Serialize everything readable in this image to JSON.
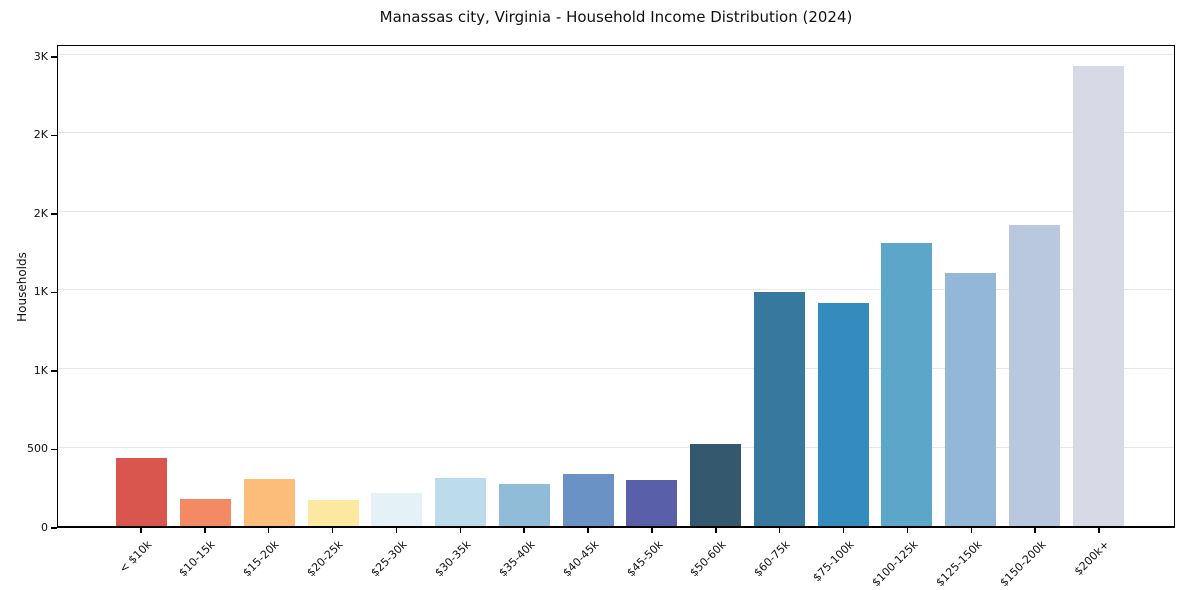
{
  "chart_data": {
    "type": "bar",
    "title": "Manassas city, Virginia - Household Income Distribution (2024)",
    "xlabel": "",
    "ylabel": "Households",
    "categories": [
      "< $10k",
      "$10-15k",
      "$15-20k",
      "$20-25k",
      "$25-30k",
      "$30-35k",
      "$35-40k",
      "$40-45k",
      "$45-50k",
      "$50-60k",
      "$60-75k",
      "$75-100k",
      "$100-125k",
      "$125-150k",
      "$150-200k",
      "$200k+"
    ],
    "values": [
      430,
      175,
      300,
      165,
      210,
      305,
      270,
      330,
      295,
      525,
      1490,
      1420,
      1800,
      1610,
      1920,
      2930
    ],
    "bar_colors": [
      "#d8564e",
      "#f38a63",
      "#fcbd7a",
      "#fde8a2",
      "#e4f1f7",
      "#bcdcec",
      "#90bcd8",
      "#6b92c4",
      "#5a5fa9",
      "#34596f",
      "#36789e",
      "#348bbd",
      "#5ba6c9",
      "#93b8d7",
      "#b9c8de",
      "#d8d9e6"
    ],
    "ylim": [
      0,
      3076
    ],
    "yticks": [
      {
        "value": 0,
        "label": "0"
      },
      {
        "value": 500,
        "label": "500"
      },
      {
        "value": 1000,
        "label": "1K"
      },
      {
        "value": 1500,
        "label": "1K"
      },
      {
        "value": 2000,
        "label": "2K"
      },
      {
        "value": 2500,
        "label": "2K"
      },
      {
        "value": 3000,
        "label": "3K"
      }
    ],
    "grid": "horizontal",
    "legend": "none",
    "background_color": "#ffffff",
    "gridline_color": "#e7e7e7",
    "frame_color": "#000000"
  }
}
